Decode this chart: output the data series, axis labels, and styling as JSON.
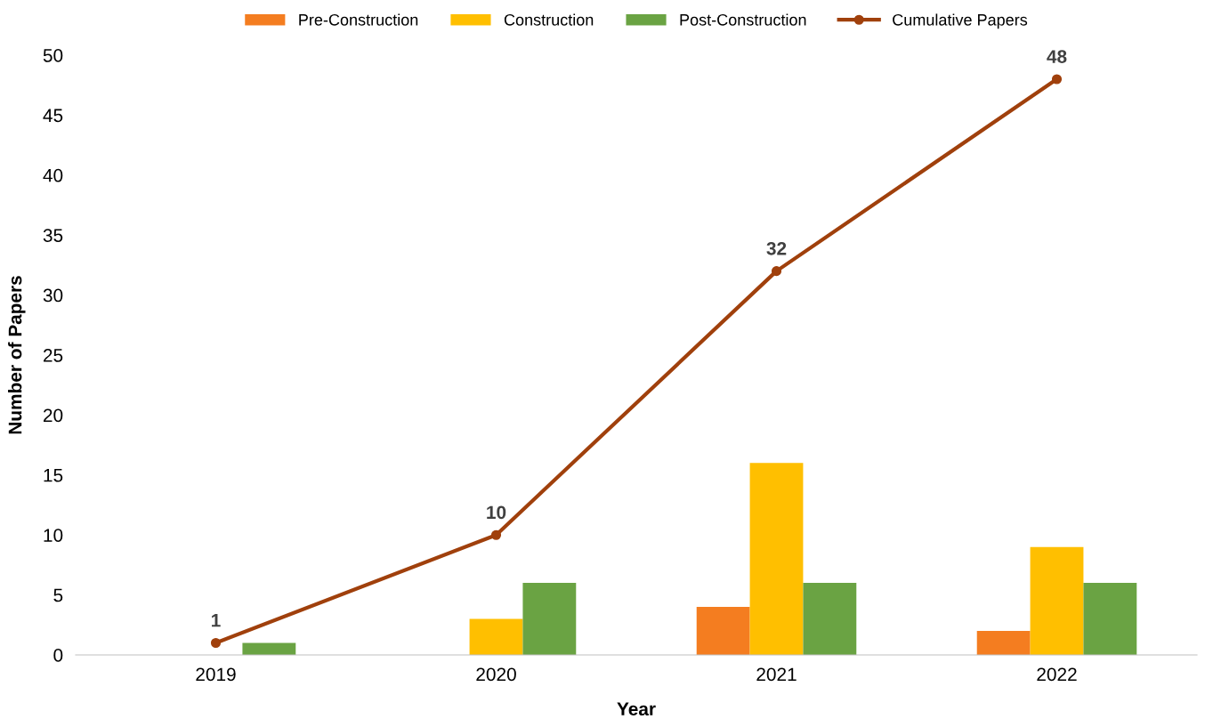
{
  "chart_data": {
    "type": "bar",
    "xlabel": "Year",
    "ylabel": "Number of Papers",
    "categories": [
      "2019",
      "2020",
      "2021",
      "2022"
    ],
    "series": [
      {
        "name": "Pre-Construction",
        "color": "#f47d20",
        "values": [
          0,
          0,
          4,
          2
        ]
      },
      {
        "name": "Construction",
        "color": "#ffbf00",
        "values": [
          0,
          3,
          16,
          9
        ]
      },
      {
        "name": "Post-Construction",
        "color": "#6aa343",
        "values": [
          1,
          6,
          6,
          6
        ]
      },
      {
        "name": "Cumulative Papers",
        "type": "line",
        "color": "#a0400c",
        "values": [
          1,
          10,
          32,
          48
        ],
        "value_labels": [
          "1",
          "10",
          "32",
          "48"
        ],
        "marker": "circle"
      }
    ],
    "ylim": [
      0,
      50
    ],
    "yticks": [
      0,
      5,
      10,
      15,
      20,
      25,
      30,
      35,
      40,
      45,
      50
    ],
    "grid": false,
    "legend": "top"
  }
}
